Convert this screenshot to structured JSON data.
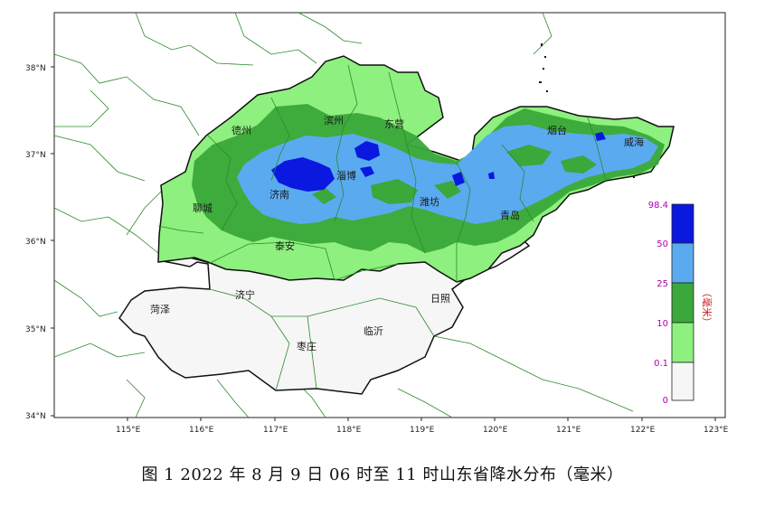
{
  "caption": "图 1 2022 年 8 月 9 日 06 时至 11 时山东省降水分布（毫米）",
  "lat_labels": [
    "38°N",
    "37°N",
    "36°N",
    "35°N",
    "34°N"
  ],
  "lon_labels": [
    "115°E",
    "116°E",
    "117°E",
    "118°E",
    "119°E",
    "120°E",
    "121°E",
    "122°E",
    "123°E"
  ],
  "cities": {
    "dezhou": "德州",
    "binzhou": "滨州",
    "dongying": "东营",
    "yantai": "烟台",
    "weihai": "威海",
    "zibo": "淄博",
    "jinan": "济南",
    "weifang": "潍坊",
    "qingdao": "青岛",
    "liaocheng": "聊城",
    "taian": "泰安",
    "heze": "菏泽",
    "jining": "济宁",
    "rizhao": "日照",
    "zaozhuang": "枣庄",
    "linyi": "临沂"
  },
  "legend": {
    "unit": "（毫米）",
    "ticks": [
      "98.4",
      "50",
      "25",
      "10",
      "0.1",
      "0"
    ],
    "colors": [
      "#0a18e0",
      "#5aaaf0",
      "#3aa83a",
      "#8ef07e",
      "#f6f6f6"
    ]
  },
  "colors": {
    "no_rain": "#f6f6f6",
    "light": "#8ef07e",
    "moderate": "#3aa83a",
    "heavy": "#5aaaf0",
    "rainstorm": "#0a18e0",
    "border": "#2a8a2a",
    "province_outline": "#111111"
  }
}
